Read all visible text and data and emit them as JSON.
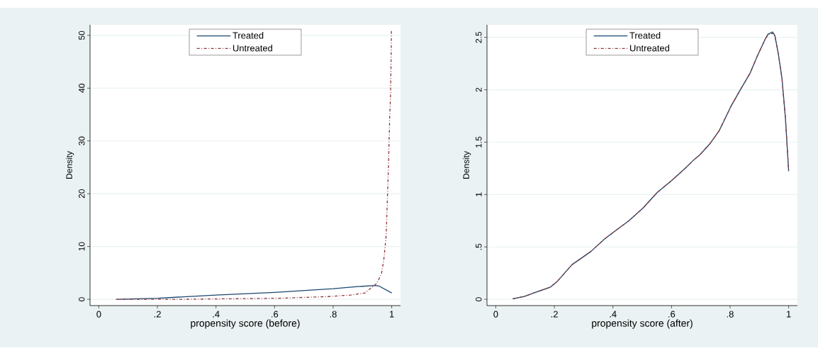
{
  "chart_data": [
    {
      "type": "line",
      "xlabel": "propensity score (before)",
      "ylabel": "Density",
      "grid": "y",
      "legend": "top",
      "xlim": [
        -0.03,
        1.03
      ],
      "ylim": [
        -1.2,
        52
      ],
      "xticks": [
        0,
        {
          "value": 0.2,
          "label": ".2"
        },
        {
          "value": 0.4,
          "label": ".4"
        },
        {
          "value": 0.6,
          "label": ".6"
        },
        {
          "value": 0.8,
          "label": ".8"
        },
        1
      ],
      "yticks": [
        0,
        10,
        20,
        30,
        40,
        50
      ],
      "series": [
        {
          "name": "Treated",
          "color": "#1a476f",
          "line_style": "solid",
          "x": [
            0.063,
            0.2,
            0.4,
            0.6,
            0.8,
            0.884,
            0.941,
            0.957,
            1.0
          ],
          "values": [
            0,
            0.2,
            0.8,
            1.3,
            2.0,
            2.4,
            2.6,
            2.5,
            1.2
          ]
        },
        {
          "name": "Untreated",
          "color": "#90353b",
          "line_style": "dashdot",
          "x": [
            0.058,
            0.29,
            0.454,
            0.616,
            0.779,
            0.86,
            0.908,
            0.949,
            0.965,
            0.973,
            0.981,
            0.985,
            0.989,
            0.993,
            0.996,
            0.998,
            0.999
          ],
          "values": [
            0,
            0,
            0.1,
            0.2,
            0.5,
            0.8,
            1.2,
            3.0,
            4.8,
            7.5,
            12,
            18.7,
            25.4,
            34.3,
            38.8,
            45.5,
            50.9
          ]
        }
      ]
    },
    {
      "type": "line",
      "xlabel": "propensity score (after)",
      "ylabel": "Density",
      "grid": "y",
      "legend": "top",
      "xlim": [
        -0.03,
        1.03
      ],
      "ylim": [
        -0.06,
        2.62
      ],
      "xticks": [
        0,
        {
          "value": 0.2,
          "label": ".2"
        },
        {
          "value": 0.4,
          "label": ".4"
        },
        {
          "value": 0.6,
          "label": ".6"
        },
        {
          "value": 0.8,
          "label": ".8"
        },
        1
      ],
      "yticks": [
        0,
        {
          "value": 0.5,
          "label": ".5"
        },
        1,
        {
          "value": 1.5,
          "label": "1.5"
        },
        2,
        {
          "value": 2.5,
          "label": "2.5"
        }
      ],
      "series": [
        {
          "name": "Treated",
          "color": "#1a476f",
          "line_style": "solid",
          "x": [
            0.058,
            0.097,
            0.13,
            0.187,
            0.211,
            0.26,
            0.324,
            0.373,
            0.405,
            0.454,
            0.503,
            0.551,
            0.6,
            0.649,
            0.673,
            0.697,
            0.73,
            0.762,
            0.803,
            0.835,
            0.868,
            0.892,
            0.92,
            0.929,
            0.945,
            0.953,
            0.965,
            0.977,
            0.989,
            1.0
          ],
          "values": [
            0.005,
            0.027,
            0.061,
            0.117,
            0.174,
            0.33,
            0.455,
            0.579,
            0.647,
            0.748,
            0.872,
            1.019,
            1.132,
            1.256,
            1.323,
            1.38,
            1.481,
            1.605,
            1.842,
            2.0,
            2.157,
            2.315,
            2.484,
            2.529,
            2.552,
            2.518,
            2.338,
            2.112,
            1.729,
            1.222
          ]
        },
        {
          "name": "Untreated",
          "color": "#90353b",
          "line_style": "dashdot",
          "x": [
            0.058,
            0.097,
            0.13,
            0.187,
            0.211,
            0.26,
            0.324,
            0.373,
            0.405,
            0.454,
            0.503,
            0.551,
            0.6,
            0.649,
            0.673,
            0.697,
            0.73,
            0.762,
            0.803,
            0.835,
            0.868,
            0.892,
            0.92,
            0.929,
            0.945,
            0.953,
            0.965,
            0.977,
            0.989,
            1.0
          ],
          "values": [
            0.005,
            0.027,
            0.061,
            0.117,
            0.174,
            0.33,
            0.455,
            0.579,
            0.647,
            0.748,
            0.872,
            1.019,
            1.132,
            1.256,
            1.323,
            1.38,
            1.481,
            1.605,
            1.842,
            2.0,
            2.157,
            2.315,
            2.484,
            2.52,
            2.54,
            2.51,
            2.338,
            2.112,
            1.729,
            1.222
          ]
        }
      ]
    }
  ]
}
